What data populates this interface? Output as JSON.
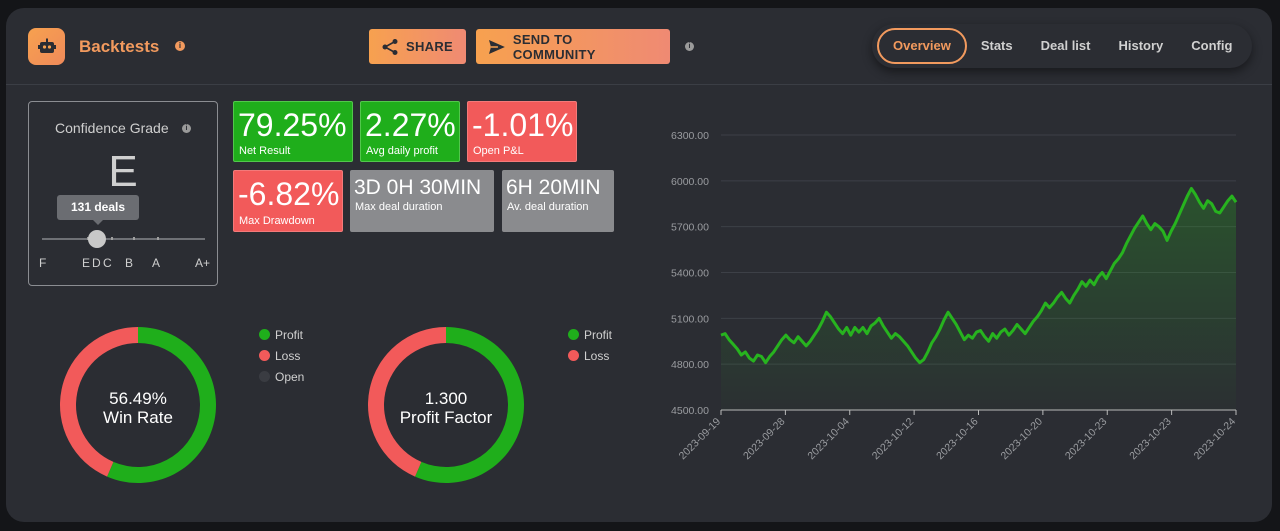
{
  "header": {
    "title": "Backtests",
    "share_label": "SHARE",
    "send_label": "SEND TO COMMUNITY",
    "tabs": [
      {
        "label": "Overview",
        "active": true
      },
      {
        "label": "Stats",
        "active": false
      },
      {
        "label": "Deal list",
        "active": false
      },
      {
        "label": "History",
        "active": false
      },
      {
        "label": "Config",
        "active": false
      }
    ],
    "accent": "#f29a5e"
  },
  "confidence": {
    "title": "Confidence Grade",
    "grade": "E",
    "tooltip": "131 deals",
    "slider_position": 0.3,
    "scale_labels": [
      "F",
      "E",
      "D",
      "C",
      "B",
      "A",
      "A+"
    ]
  },
  "stats": [
    {
      "value": "79.25%",
      "label": "Net Result",
      "color": "green"
    },
    {
      "value": "2.27%",
      "label": "Avg daily profit",
      "color": "green"
    },
    {
      "value": "-1.01%",
      "label": "Open P&L",
      "color": "red"
    },
    {
      "value": "-6.82%",
      "label": "Max Drawdown",
      "color": "red"
    },
    {
      "value": "3D 0H 30MIN",
      "label": "Max deal duration",
      "color": "gray"
    },
    {
      "value": "6H 20MIN",
      "label": "Av. deal duration",
      "color": "gray"
    }
  ],
  "donuts": [
    {
      "value": "56.49%",
      "caption": "Win Rate",
      "slices": [
        {
          "name": "Profit",
          "value": 56.49,
          "color": "#1fae1b"
        },
        {
          "name": "Loss",
          "value": 43.51,
          "color": "#f25a5a"
        }
      ],
      "legend": [
        {
          "name": "Profit",
          "color": "#1fae1b"
        },
        {
          "name": "Loss",
          "color": "#f25a5a"
        },
        {
          "name": "Open",
          "color": "#3a3c42"
        }
      ]
    },
    {
      "value": "1.300",
      "caption": "Profit Factor",
      "slices": [
        {
          "name": "Profit",
          "value": 56.5,
          "color": "#1fae1b"
        },
        {
          "name": "Loss",
          "value": 43.5,
          "color": "#f25a5a"
        }
      ],
      "legend": [
        {
          "name": "Profit",
          "color": "#1fae1b"
        },
        {
          "name": "Loss",
          "color": "#f25a5a"
        }
      ]
    }
  ],
  "chart_data": {
    "type": "line",
    "ylim": [
      4500,
      6300
    ],
    "yticks": [
      "6300.00",
      "6000.00",
      "5700.00",
      "5400.00",
      "5100.00",
      "4800.00",
      "4500.00"
    ],
    "xticks": [
      "2023-09-19",
      "2023-09-28",
      "2023-10-04",
      "2023-10-12",
      "2023-10-16",
      "2023-10-20",
      "2023-10-23",
      "2023-10-23",
      "2023-10-24"
    ],
    "color": "#27b31f",
    "values": [
      4990,
      5000,
      4960,
      4930,
      4900,
      4860,
      4880,
      4840,
      4820,
      4860,
      4850,
      4810,
      4850,
      4880,
      4920,
      4960,
      4990,
      4960,
      4940,
      4980,
      4950,
      4920,
      4950,
      4990,
      5030,
      5080,
      5140,
      5110,
      5070,
      5030,
      5000,
      5040,
      4990,
      5040,
      5010,
      5040,
      5000,
      5050,
      5070,
      5100,
      5050,
      5010,
      4970,
      5000,
      4980,
      4950,
      4920,
      4880,
      4840,
      4810,
      4830,
      4880,
      4940,
      4980,
      5030,
      5090,
      5140,
      5100,
      5060,
      5010,
      4960,
      4990,
      4970,
      5010,
      5020,
      4980,
      4950,
      5000,
      4970,
      5010,
      5030,
      4990,
      5020,
      5060,
      5030,
      5000,
      5040,
      5080,
      5110,
      5150,
      5200,
      5170,
      5200,
      5240,
      5270,
      5230,
      5200,
      5250,
      5290,
      5340,
      5310,
      5350,
      5320,
      5370,
      5400,
      5360,
      5410,
      5460,
      5490,
      5530,
      5590,
      5640,
      5690,
      5730,
      5770,
      5720,
      5680,
      5720,
      5700,
      5670,
      5610,
      5670,
      5720,
      5780,
      5840,
      5900,
      5950,
      5910,
      5860,
      5820,
      5870,
      5850,
      5800,
      5790,
      5830,
      5870,
      5900,
      5860
    ]
  }
}
